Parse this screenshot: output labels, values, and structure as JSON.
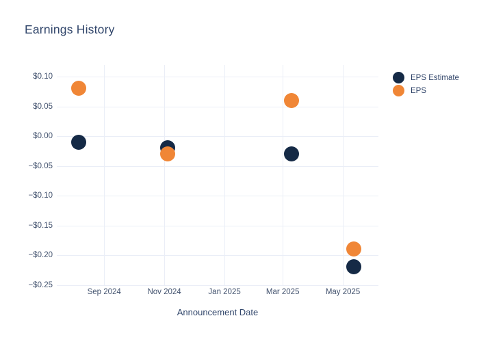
{
  "chart_data": {
    "type": "scatter",
    "title": "Earnings History",
    "xlabel": "Announcement Date",
    "ylabel": "",
    "grid": true,
    "legend_position": "right",
    "marker_diameter_px": 22,
    "x_domain": [
      "2024-07-15",
      "2025-06-06"
    ],
    "ylim": [
      -0.2506,
      0.1195
    ],
    "x_tick_dates": [
      "2024-09-01",
      "2024-11-01",
      "2025-01-01",
      "2025-03-01",
      "2025-05-01"
    ],
    "x_tick_labels": [
      "Sep 2024",
      "Nov 2024",
      "Jan 2025",
      "Mar 2025",
      "May 2025"
    ],
    "y_ticks": [
      0.1,
      0.05,
      0.0,
      -0.05,
      -0.1,
      -0.15,
      -0.2,
      -0.25
    ],
    "y_tick_labels": [
      "$0.10",
      "$0.05",
      "$0.00",
      "−$0.05",
      "−$0.10",
      "−$0.15",
      "−$0.20",
      "−$0.25"
    ],
    "series": [
      {
        "name": "EPS Estimate",
        "color": "#152A46",
        "points": [
          {
            "date": "2024-08-06",
            "value": -0.01
          },
          {
            "date": "2024-11-04",
            "value": -0.02
          },
          {
            "date": "2025-03-10",
            "value": -0.03
          },
          {
            "date": "2025-05-12",
            "value": -0.22
          }
        ]
      },
      {
        "name": "EPS",
        "color": "#F08636",
        "points": [
          {
            "date": "2024-08-06",
            "value": 0.08
          },
          {
            "date": "2024-11-04",
            "value": -0.03
          },
          {
            "date": "2025-03-10",
            "value": 0.06
          },
          {
            "date": "2025-05-12",
            "value": -0.19
          }
        ]
      }
    ],
    "colors": {
      "eps_estimate": "#152A46",
      "eps": "#F08636",
      "gridline": "#EAEEF7",
      "title_text": "#31466B",
      "tick_text": "#42526E"
    }
  }
}
